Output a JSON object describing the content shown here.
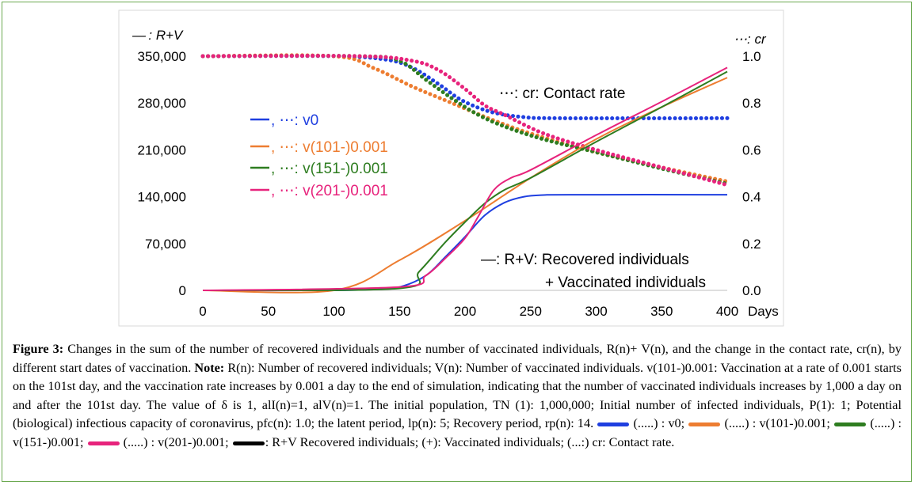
{
  "chart_data": {
    "type": "line",
    "x": {
      "label": "Days",
      "min": 0,
      "max": 400,
      "ticks": [
        "0",
        "50",
        "100",
        "150",
        "200",
        "250",
        "300",
        "350",
        "400"
      ]
    },
    "y_left": {
      "label": "R+V",
      "min": 0,
      "max": 350000,
      "ticks": [
        "0",
        "70,000",
        "140,000",
        "210,000",
        "280,000",
        "350,000"
      ]
    },
    "y_right": {
      "label": "cr",
      "min": 0,
      "max": 1,
      "ticks": [
        "0.0",
        "0.2",
        "0.4",
        "0.6",
        "0.8",
        "1.0"
      ]
    },
    "left_axis_title": "— : R+V",
    "right_axis_title": "⋯: cr",
    "series": [
      {
        "name": "v0",
        "color": "#1f3fe0",
        "rv": [
          [
            0,
            0
          ],
          [
            100,
            0
          ],
          [
            130,
            1500
          ],
          [
            150,
            5000
          ],
          [
            170,
            22000
          ],
          [
            185,
            50000
          ],
          [
            200,
            80000
          ],
          [
            215,
            112000
          ],
          [
            230,
            131000
          ],
          [
            245,
            140000
          ],
          [
            260,
            142500
          ],
          [
            280,
            143000
          ],
          [
            400,
            143000
          ]
        ],
        "cr": [
          [
            0,
            1
          ],
          [
            100,
            1
          ],
          [
            140,
            0.985
          ],
          [
            160,
            0.95
          ],
          [
            180,
            0.88
          ],
          [
            195,
            0.82
          ],
          [
            210,
            0.78
          ],
          [
            225,
            0.755
          ],
          [
            245,
            0.74
          ],
          [
            270,
            0.735
          ],
          [
            400,
            0.735
          ]
        ]
      },
      {
        "name": "v(101-)0.001",
        "color": "#ed7d31",
        "rv": [
          [
            0,
            0
          ],
          [
            100,
            0
          ],
          [
            150,
            45000
          ],
          [
            200,
            104000
          ],
          [
            250,
            168000
          ],
          [
            300,
            226000
          ],
          [
            350,
            274000
          ],
          [
            400,
            318000
          ]
        ],
        "cr": [
          [
            0,
            1
          ],
          [
            100,
            1
          ],
          [
            130,
            0.95
          ],
          [
            160,
            0.87
          ],
          [
            190,
            0.8
          ],
          [
            220,
            0.73
          ],
          [
            250,
            0.67
          ],
          [
            300,
            0.59
          ],
          [
            350,
            0.525
          ],
          [
            400,
            0.465
          ]
        ]
      },
      {
        "name": "v(151-)0.001",
        "color": "#2e7d20",
        "rv": [
          [
            0,
            0
          ],
          [
            150,
            3000
          ],
          [
            165,
            28000
          ],
          [
            185,
            72000
          ],
          [
            200,
            102000
          ],
          [
            215,
            130000
          ],
          [
            230,
            150000
          ],
          [
            250,
            168000
          ],
          [
            300,
            222000
          ],
          [
            350,
            274000
          ],
          [
            400,
            327000
          ]
        ],
        "cr": [
          [
            0,
            1
          ],
          [
            120,
            1
          ],
          [
            150,
            0.98
          ],
          [
            170,
            0.9
          ],
          [
            190,
            0.82
          ],
          [
            210,
            0.75
          ],
          [
            230,
            0.7
          ],
          [
            260,
            0.645
          ],
          [
            300,
            0.59
          ],
          [
            350,
            0.52
          ],
          [
            400,
            0.455
          ]
        ]
      },
      {
        "name": "v(201-)0.001",
        "color": "#e7237c",
        "rv": [
          [
            0,
            0
          ],
          [
            150,
            5000
          ],
          [
            170,
            22000
          ],
          [
            185,
            48000
          ],
          [
            200,
            78000
          ],
          [
            210,
            110000
          ],
          [
            222,
            150000
          ],
          [
            235,
            168000
          ],
          [
            250,
            180000
          ],
          [
            300,
            232000
          ],
          [
            350,
            282000
          ],
          [
            400,
            333000
          ]
        ],
        "cr": [
          [
            0,
            1
          ],
          [
            120,
            1
          ],
          [
            160,
            0.98
          ],
          [
            180,
            0.94
          ],
          [
            200,
            0.86
          ],
          [
            215,
            0.79
          ],
          [
            230,
            0.75
          ],
          [
            260,
            0.67
          ],
          [
            300,
            0.6
          ],
          [
            350,
            0.525
          ],
          [
            400,
            0.45
          ]
        ]
      }
    ],
    "annotations": {
      "contact_rate": "⋯: cr: Contact rate",
      "rv_title": "—: R+V: Recovered individuals",
      "rv_title2": "+ Vaccinated individuals",
      "legend_prefix": "—, ⋯:"
    }
  },
  "caption": {
    "label": "Figure 3:",
    "part1": " Changes in the sum of the number of recovered individuals and the number of vaccinated individuals, R(n)+ V(n), and the change in the contact rate, cr(n), by different start dates of vaccination. ",
    "note_label": "Note:",
    "part2": " R(n): Number of recovered individuals; V(n): Number of vaccinated individuals. v(101-)0.001: Vaccination at a rate of 0.001 starts on the 101st day, and the vaccination rate increases by 0.001 a day to the end of simulation, indicating that the number of vaccinated individuals increases by 1,000 a day on and after the 101st day. The value of δ is 1, alI(n)=1, alV(n)=1. The initial population, TN (1): 1,000,000; Initial number of infected individuals, P(1): 1; Potential (biological) infectious capacity of coronavirus, pfc(n): 1.0; the latent period, lp(n): 5; Recovery period, rp(n): 14.",
    "key1": "(.....) : v0;",
    "key2": "(.....) : v(101-)0.001;",
    "key3": "(.....) : v(151-)0.001;",
    "key4": "(.....) : v(201-)0.001;",
    "key5": ": R+V Recovered individuals; (+): Vaccinated individuals; (...:) cr: Contact rate."
  }
}
